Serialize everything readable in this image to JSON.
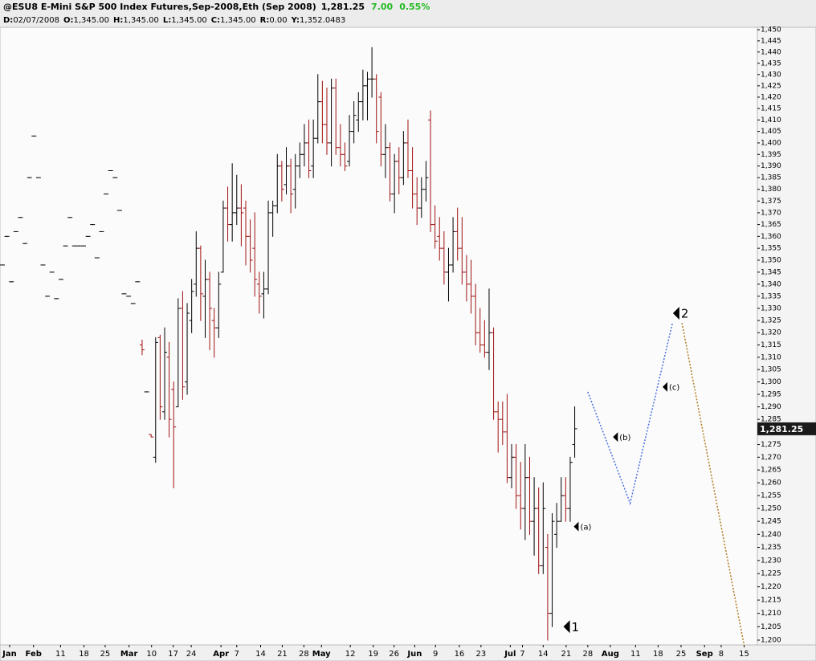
{
  "chart_data": {
    "type": "ohlc",
    "title": "@ESU8 E-Mini S&P 500 Index Futures,Sep-2008,Eth (Sep 2008)",
    "last": {
      "value": 1281.25,
      "label": "1,281.25"
    },
    "change": "7.00",
    "change_pct": "0.55%",
    "info": [
      {
        "key": "D:",
        "value": "02/07/2008"
      },
      {
        "key": "O:",
        "value": "1,345.00"
      },
      {
        "key": "H:",
        "value": "1,345.00"
      },
      {
        "key": "L:",
        "value": "1,345.00"
      },
      {
        "key": "C:",
        "value": "1,345.00"
      },
      {
        "key": "R:",
        "value": "0.00"
      },
      {
        "key": "Y:",
        "value": "1,352.0483"
      }
    ],
    "log_scale": true,
    "up_color": "#000000",
    "down_color": "#a01010",
    "ylim": [
      1200,
      1450
    ],
    "yticks": [
      {
        "value": 1200,
        "label": "1,200"
      },
      {
        "value": 1205,
        "label": "1,205"
      },
      {
        "value": 1210,
        "label": "1,210"
      },
      {
        "value": 1215,
        "label": "1,215"
      },
      {
        "value": 1220,
        "label": "1,220"
      },
      {
        "value": 1225,
        "label": "1,225"
      },
      {
        "value": 1230,
        "label": "1,230"
      },
      {
        "value": 1235,
        "label": "1,235"
      },
      {
        "value": 1240,
        "label": "1,240"
      },
      {
        "value": 1245,
        "label": "1,245"
      },
      {
        "value": 1250,
        "label": "1,250"
      },
      {
        "value": 1255,
        "label": "1,255"
      },
      {
        "value": 1260,
        "label": "1,260"
      },
      {
        "value": 1265,
        "label": "1,265"
      },
      {
        "value": 1270,
        "label": "1,270"
      },
      {
        "value": 1275,
        "label": "1,275"
      },
      {
        "value": 1285,
        "label": "1,285"
      },
      {
        "value": 1290,
        "label": "1,290"
      },
      {
        "value": 1295,
        "label": "1,295"
      },
      {
        "value": 1300,
        "label": "1,300"
      },
      {
        "value": 1305,
        "label": "1,305"
      },
      {
        "value": 1310,
        "label": "1,310"
      },
      {
        "value": 1315,
        "label": "1,315"
      },
      {
        "value": 1320,
        "label": "1,320"
      },
      {
        "value": 1325,
        "label": "1,325"
      },
      {
        "value": 1330,
        "label": "1,330"
      },
      {
        "value": 1335,
        "label": "1,335"
      },
      {
        "value": 1340,
        "label": "1,340"
      },
      {
        "value": 1345,
        "label": "1,345"
      },
      {
        "value": 1350,
        "label": "1,350"
      },
      {
        "value": 1355,
        "label": "1,355"
      },
      {
        "value": 1360,
        "label": "1,360"
      },
      {
        "value": 1365,
        "label": "1,365"
      },
      {
        "value": 1370,
        "label": "1,370"
      },
      {
        "value": 1375,
        "label": "1,375"
      },
      {
        "value": 1380,
        "label": "1,380"
      },
      {
        "value": 1385,
        "label": "1,385"
      },
      {
        "value": 1390,
        "label": "1,390"
      },
      {
        "value": 1395,
        "label": "1,395"
      },
      {
        "value": 1400,
        "label": "1,400"
      },
      {
        "value": 1405,
        "label": "1,405"
      },
      {
        "value": 1410,
        "label": "1,410"
      },
      {
        "value": 1415,
        "label": "1,415"
      },
      {
        "value": 1420,
        "label": "1,420"
      },
      {
        "value": 1425,
        "label": "1,425"
      },
      {
        "value": 1430,
        "label": "1,430"
      },
      {
        "value": 1435,
        "label": "1,435"
      },
      {
        "value": 1440,
        "label": "1,440"
      },
      {
        "value": 1445,
        "label": "1,445"
      },
      {
        "value": 1450,
        "label": "1,450"
      }
    ],
    "xlim": [
      -0.5,
      166.5
    ],
    "xticks": [
      {
        "value": 1.6,
        "label": "Jan",
        "month": true
      },
      {
        "value": 6.9,
        "label": "Feb",
        "month": true
      },
      {
        "value": 12.9,
        "label": "11"
      },
      {
        "value": 18.1,
        "label": "18"
      },
      {
        "value": 22.8,
        "label": "25"
      },
      {
        "value": 28.1,
        "label": "Mar",
        "month": true
      },
      {
        "value": 33.1,
        "label": "10"
      },
      {
        "value": 37.9,
        "label": "17"
      },
      {
        "value": 41.9,
        "label": "24"
      },
      {
        "value": 48.5,
        "label": "Apr",
        "month": true
      },
      {
        "value": 52,
        "label": "7"
      },
      {
        "value": 57.3,
        "label": "14"
      },
      {
        "value": 62.1,
        "label": "21"
      },
      {
        "value": 66.9,
        "label": "28"
      },
      {
        "value": 70.8,
        "label": "May",
        "month": true
      },
      {
        "value": 77.2,
        "label": "12"
      },
      {
        "value": 82.3,
        "label": "19"
      },
      {
        "value": 86.9,
        "label": "26"
      },
      {
        "value": 91.5,
        "label": "Jun",
        "month": true
      },
      {
        "value": 96.1,
        "label": "9"
      },
      {
        "value": 101.4,
        "label": "16"
      },
      {
        "value": 106.2,
        "label": "23"
      },
      {
        "value": 112.7,
        "label": "Jul",
        "month": true
      },
      {
        "value": 115.4,
        "label": "7"
      },
      {
        "value": 120,
        "label": "14"
      },
      {
        "value": 125.1,
        "label": "21"
      },
      {
        "value": 129.9,
        "label": "28"
      },
      {
        "value": 134.9,
        "label": "Aug",
        "month": true
      },
      {
        "value": 140.5,
        "label": "11"
      },
      {
        "value": 145.5,
        "label": "18"
      },
      {
        "value": 150.6,
        "label": "25"
      },
      {
        "value": 155.8,
        "label": "Sep",
        "month": true
      },
      {
        "value": 159.5,
        "label": "8"
      },
      {
        "value": 164.6,
        "label": "15"
      }
    ],
    "bars": [
      [
        0,
        1348,
        1348,
        1348,
        1348
      ],
      [
        1,
        1360,
        1360,
        1360,
        1360
      ],
      [
        2,
        1341,
        1341,
        1341,
        1341
      ],
      [
        3,
        1362,
        1362,
        1362,
        1362
      ],
      [
        4,
        1368,
        1368,
        1368,
        1368
      ],
      [
        5,
        1357,
        1357,
        1357,
        1357
      ],
      [
        6,
        1385,
        1385,
        1385,
        1385
      ],
      [
        7,
        1403,
        1403,
        1403,
        1403
      ],
      [
        8,
        1385,
        1385,
        1385,
        1385
      ],
      [
        9,
        1348,
        1348,
        1348,
        1348
      ],
      [
        10,
        1335,
        1335,
        1335,
        1335
      ],
      [
        11,
        1345,
        1345,
        1345,
        1345
      ],
      [
        12,
        1334,
        1334,
        1334,
        1334
      ],
      [
        13,
        1342,
        1342,
        1342,
        1342
      ],
      [
        14,
        1356,
        1356,
        1356,
        1356
      ],
      [
        15,
        1368,
        1368,
        1368,
        1368
      ],
      [
        16,
        1356,
        1356,
        1356,
        1356
      ],
      [
        17,
        1356,
        1356,
        1356,
        1356
      ],
      [
        18,
        1356,
        1356,
        1356,
        1356
      ],
      [
        19,
        1360,
        1360,
        1360,
        1360
      ],
      [
        20,
        1365,
        1365,
        1365,
        1365
      ],
      [
        21,
        1351,
        1351,
        1351,
        1351
      ],
      [
        22,
        1362,
        1362,
        1362,
        1362
      ],
      [
        23,
        1378,
        1378,
        1378,
        1378
      ],
      [
        24,
        1388,
        1388,
        1388,
        1388
      ],
      [
        25,
        1385,
        1385,
        1385,
        1385
      ],
      [
        26,
        1371,
        1371,
        1371,
        1371
      ],
      [
        27,
        1336,
        1336,
        1336,
        1336
      ],
      [
        28,
        1335,
        1335,
        1335,
        1335
      ],
      [
        29,
        1332,
        1332,
        1332,
        1332
      ],
      [
        30,
        1341,
        1341,
        1341,
        1341
      ],
      [
        31,
        1315,
        1317,
        1311,
        1313
      ],
      [
        32,
        1296,
        1296,
        1296,
        1296
      ],
      [
        33,
        1279,
        1279,
        1278,
        1278
      ],
      [
        34,
        1270,
        1318,
        1268,
        1316
      ],
      [
        35,
        1318,
        1319,
        1285,
        1290
      ],
      [
        36,
        1288,
        1322,
        1285,
        1312
      ],
      [
        37,
        1310,
        1316,
        1278,
        1285
      ],
      [
        38,
        1297,
        1300,
        1258,
        1282
      ],
      [
        39,
        1290,
        1334,
        1290,
        1330
      ],
      [
        40,
        1330,
        1337,
        1293,
        1298
      ],
      [
        41,
        1300,
        1332,
        1295,
        1328
      ],
      [
        42,
        1325,
        1342,
        1320,
        1337
      ],
      [
        43,
        1340,
        1362,
        1335,
        1355
      ],
      [
        44,
        1355,
        1356,
        1325,
        1336
      ],
      [
        45,
        1335,
        1350,
        1318,
        1342
      ],
      [
        46,
        1342,
        1345,
        1313,
        1330
      ],
      [
        47,
        1325,
        1330,
        1310,
        1322
      ],
      [
        48,
        1322,
        1345,
        1318,
        1340
      ],
      [
        49,
        1345,
        1375,
        1345,
        1372
      ],
      [
        50,
        1372,
        1381,
        1358,
        1365
      ],
      [
        51,
        1365,
        1391,
        1358,
        1370
      ],
      [
        52,
        1370,
        1386,
        1365,
        1372
      ],
      [
        53,
        1372,
        1382,
        1356,
        1370
      ],
      [
        54,
        1372,
        1375,
        1348,
        1360
      ],
      [
        55,
        1360,
        1367,
        1345,
        1350
      ],
      [
        56,
        1355,
        1370,
        1335,
        1342
      ],
      [
        57,
        1340,
        1345,
        1328,
        1335
      ],
      [
        58,
        1336,
        1345,
        1326,
        1338
      ],
      [
        59,
        1338,
        1375,
        1336,
        1370
      ],
      [
        60,
        1370,
        1375,
        1360,
        1373
      ],
      [
        61,
        1373,
        1395,
        1370,
        1390
      ],
      [
        62,
        1390,
        1392,
        1375,
        1380
      ],
      [
        63,
        1382,
        1398,
        1378,
        1390
      ],
      [
        64,
        1390,
        1393,
        1370,
        1378
      ],
      [
        65,
        1380,
        1395,
        1372,
        1390
      ],
      [
        66,
        1390,
        1400,
        1385,
        1395
      ],
      [
        67,
        1395,
        1408,
        1390,
        1400
      ],
      [
        68,
        1400,
        1410,
        1385,
        1388
      ],
      [
        69,
        1390,
        1410,
        1385,
        1402
      ],
      [
        70,
        1402,
        1430,
        1400,
        1418
      ],
      [
        71,
        1418,
        1427,
        1400,
        1408
      ],
      [
        72,
        1408,
        1424,
        1395,
        1400
      ],
      [
        73,
        1400,
        1428,
        1390,
        1424
      ],
      [
        74,
        1424,
        1428,
        1395,
        1398
      ],
      [
        75,
        1398,
        1408,
        1390,
        1395
      ],
      [
        76,
        1395,
        1400,
        1388,
        1390
      ],
      [
        77,
        1392,
        1412,
        1390,
        1405
      ],
      [
        78,
        1405,
        1418,
        1400,
        1412
      ],
      [
        79,
        1410,
        1422,
        1405,
        1418
      ],
      [
        80,
        1418,
        1432,
        1410,
        1425
      ],
      [
        81,
        1425,
        1431,
        1410,
        1428
      ],
      [
        82,
        1428,
        1442,
        1420,
        1428
      ],
      [
        83,
        1428,
        1430,
        1400,
        1405
      ],
      [
        84,
        1420,
        1422,
        1390,
        1395
      ],
      [
        85,
        1395,
        1408,
        1385,
        1398
      ],
      [
        86,
        1398,
        1400,
        1375,
        1378
      ],
      [
        87,
        1378,
        1395,
        1370,
        1392
      ],
      [
        88,
        1392,
        1398,
        1378,
        1385
      ],
      [
        89,
        1385,
        1405,
        1382,
        1400
      ],
      [
        90,
        1400,
        1410,
        1385,
        1388
      ],
      [
        91,
        1388,
        1398,
        1372,
        1378
      ],
      [
        92,
        1378,
        1385,
        1365,
        1372
      ],
      [
        93,
        1372,
        1385,
        1368,
        1380
      ],
      [
        94,
        1380,
        1392,
        1375,
        1385
      ],
      [
        95,
        1410,
        1414,
        1362,
        1365
      ],
      [
        96,
        1365,
        1373,
        1355,
        1358
      ],
      [
        97,
        1360,
        1368,
        1350,
        1355
      ],
      [
        98,
        1355,
        1362,
        1340,
        1345
      ],
      [
        99,
        1345,
        1355,
        1333,
        1348
      ],
      [
        100,
        1348,
        1368,
        1345,
        1362
      ],
      [
        101,
        1362,
        1372,
        1350,
        1355
      ],
      [
        102,
        1355,
        1368,
        1340,
        1345
      ],
      [
        103,
        1345,
        1352,
        1333,
        1340
      ],
      [
        104,
        1340,
        1350,
        1328,
        1335
      ],
      [
        105,
        1335,
        1340,
        1315,
        1320
      ],
      [
        106,
        1320,
        1330,
        1312,
        1315
      ],
      [
        107,
        1315,
        1325,
        1310,
        1312
      ],
      [
        108,
        1312,
        1338,
        1305,
        1320
      ],
      [
        109,
        1320,
        1322,
        1285,
        1288
      ],
      [
        110,
        1288,
        1292,
        1272,
        1285
      ],
      [
        111,
        1285,
        1292,
        1275,
        1280
      ],
      [
        112,
        1280,
        1295,
        1260,
        1262
      ],
      [
        113,
        1262,
        1275,
        1258,
        1270
      ],
      [
        114,
        1270,
        1275,
        1250,
        1255
      ],
      [
        115,
        1255,
        1268,
        1242,
        1250
      ],
      [
        116,
        1250,
        1275,
        1238,
        1262
      ],
      [
        117,
        1262,
        1270,
        1240,
        1245
      ],
      [
        118,
        1245,
        1262,
        1232,
        1250
      ],
      [
        119,
        1250,
        1258,
        1225,
        1228
      ],
      [
        120,
        1228,
        1260,
        1225,
        1250
      ],
      [
        121,
        1235,
        1240,
        1200,
        1210
      ],
      [
        122,
        1210,
        1248,
        1205,
        1245
      ],
      [
        123,
        1240,
        1252,
        1235,
        1245
      ],
      [
        124,
        1245,
        1262,
        1245,
        1255
      ],
      [
        125,
        1255,
        1262,
        1245,
        1250
      ],
      [
        126,
        1250,
        1270,
        1245,
        1268
      ],
      [
        127,
        1275,
        1290,
        1270,
        1281.25
      ]
    ],
    "projections": [
      {
        "color": "#4a6fe0",
        "points": [
          [
            129.9,
            1296
          ],
          [
            139.3,
            1252
          ],
          [
            148.7,
            1324
          ]
        ]
      },
      {
        "color": "#b07a20",
        "points": [
          [
            150.8,
            1324
          ],
          [
            164.6,
            1198
          ]
        ]
      }
    ],
    "annotations": [
      {
        "label": "1",
        "x": 124.5,
        "y": 1205,
        "big": true
      },
      {
        "label": "(a)",
        "x": 126.8,
        "y": 1243
      },
      {
        "label": "(b)",
        "x": 135.5,
        "y": 1278
      },
      {
        "label": "(c)",
        "x": 146.5,
        "y": 1298
      },
      {
        "label": "2",
        "x": 148.8,
        "y": 1328,
        "big": true
      }
    ]
  }
}
